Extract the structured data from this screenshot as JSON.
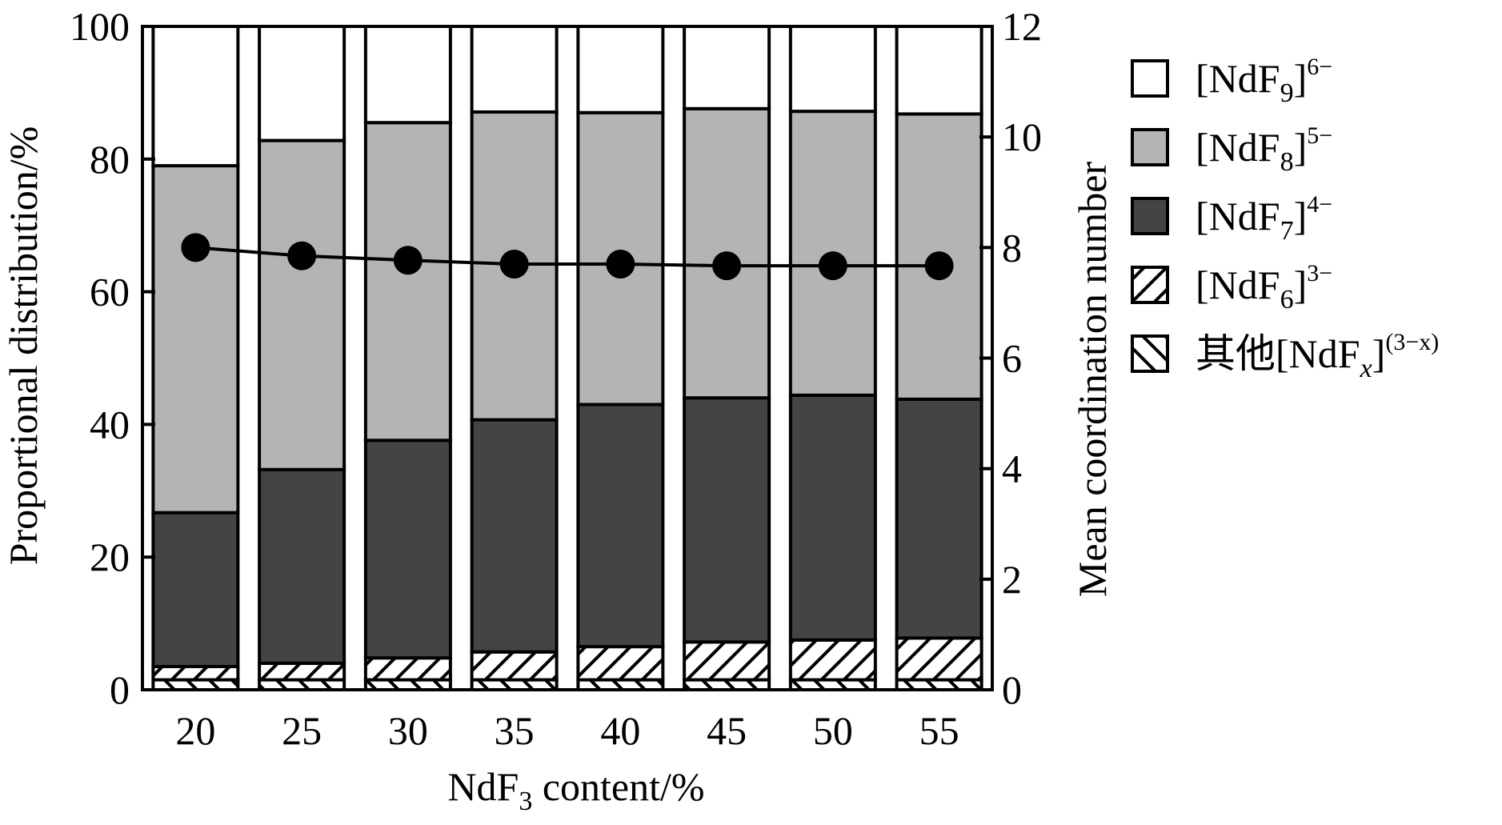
{
  "chart_data": {
    "type": "bar",
    "stacked": true,
    "categories": [
      "20",
      "25",
      "30",
      "35",
      "40",
      "45",
      "50",
      "55"
    ],
    "xlabel": "NdF3 content/%",
    "xlabel_parts": {
      "base": "NdF",
      "sub": "3",
      "rest": " content/%"
    },
    "ylabel_left": "Proportional distribution/%",
    "ylabel_right": "Mean coordination number",
    "ylim_left": [
      0,
      100
    ],
    "ylim_right": [
      0,
      12
    ],
    "yticks_left": [
      0,
      20,
      40,
      60,
      80,
      100
    ],
    "yticks_right": [
      0,
      2,
      4,
      6,
      8,
      10,
      12
    ],
    "series": [
      {
        "name": "其他[NdFx](3−x)",
        "legend": {
          "prefix": "其他[NdF",
          "sub": "x",
          "close": "]",
          "sup": "(3−x)"
        },
        "fill": "#ffffff",
        "pattern": "backslash-hatch",
        "values": [
          1.5,
          1.5,
          1.5,
          1.5,
          1.5,
          1.5,
          1.5,
          1.5
        ]
      },
      {
        "name": "[NdF6]3−",
        "legend": {
          "prefix": "[NdF",
          "sub": "6",
          "close": "]",
          "sup": "3−"
        },
        "fill": "#ffffff",
        "pattern": "slash-hatch",
        "values": [
          2.0,
          2.5,
          3.3,
          4.2,
          5.0,
          5.7,
          6.0,
          6.3
        ]
      },
      {
        "name": "[NdF7]4−",
        "legend": {
          "prefix": "[NdF",
          "sub": "7",
          "close": "]",
          "sup": "4−"
        },
        "fill": "#444444",
        "pattern": "none",
        "values": [
          23.2,
          29.2,
          32.8,
          35.0,
          36.5,
          36.8,
          36.9,
          36.0
        ]
      },
      {
        "name": "[NdF8]5−",
        "legend": {
          "prefix": "[NdF",
          "sub": "8",
          "close": "]",
          "sup": "5−"
        },
        "fill": "#b4b4b4",
        "pattern": "none",
        "values": [
          52.3,
          49.6,
          47.9,
          46.4,
          44.0,
          43.6,
          42.8,
          43.0
        ]
      },
      {
        "name": "[NdF9]6−",
        "legend": {
          "prefix": "[NdF",
          "sub": "9",
          "close": "]",
          "sup": "6−"
        },
        "fill": "#ffffff",
        "pattern": "none",
        "values": [
          21.0,
          17.2,
          14.5,
          12.9,
          13.0,
          12.4,
          12.8,
          13.2
        ]
      }
    ],
    "line_series": {
      "axis": "right",
      "values": [
        8.0,
        7.85,
        7.77,
        7.7,
        7.7,
        7.67,
        7.67,
        7.67
      ]
    },
    "legend_position": "right",
    "grid": false
  }
}
